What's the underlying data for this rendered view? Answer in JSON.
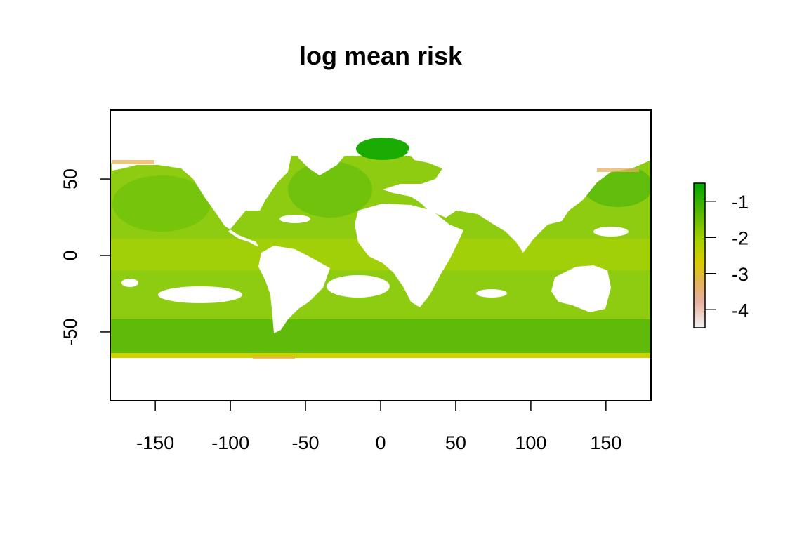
{
  "chart_data": {
    "type": "heatmap",
    "title": "log mean risk",
    "xlabel": "",
    "ylabel": "",
    "xlim": [
      -180,
      180
    ],
    "ylim": [
      -95,
      95
    ],
    "x_ticks": [
      -150,
      -100,
      -50,
      0,
      50,
      100,
      150
    ],
    "x_tick_labels": [
      "-150",
      "-100",
      "-50",
      "0",
      "50",
      "100",
      "150"
    ],
    "y_ticks": [
      50,
      0,
      -50
    ],
    "y_tick_labels": [
      "50",
      "0",
      "-50"
    ],
    "data_extent_lat": [
      -68,
      75
    ],
    "colorbar": {
      "range": [
        -4.5,
        -0.5
      ],
      "ticks": [
        -1,
        -2,
        -3,
        -4
      ],
      "tick_labels": [
        "-1",
        "-2",
        "-3",
        "-4"
      ],
      "colors": [
        "#f2f2f2",
        "#e6b0a0",
        "#e5b25a",
        "#d8cc00",
        "#a8d000",
        "#55b800",
        "#00a600"
      ],
      "low_color": "#f2f2f2",
      "high_color": "#00a600"
    },
    "ocean_base_color": "#8ecc12",
    "land_color": "#ffffff"
  }
}
